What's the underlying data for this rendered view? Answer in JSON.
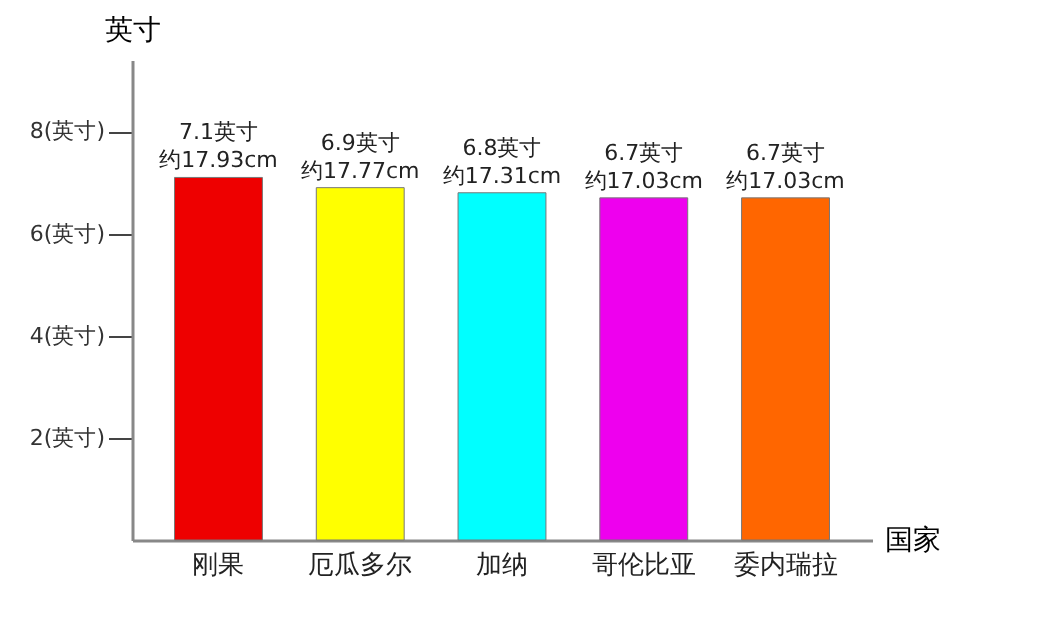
{
  "chart_data": {
    "type": "bar",
    "xlabel": "国家",
    "ylabel": "英寸",
    "categories": [
      "刚果",
      "厄瓜多尔",
      "加纳",
      "哥伦比亚",
      "委内瑞拉"
    ],
    "values": [
      7.1,
      6.9,
      6.8,
      6.7,
      6.7
    ],
    "colors": [
      "#ee0000",
      "#ffff00",
      "#00ffff",
      "#ee00ee",
      "#ff6600"
    ],
    "value_labels": [
      "7.1英寸",
      "6.9英寸",
      "6.8英寸",
      "6.7英寸",
      "6.7英寸"
    ],
    "annotations": [
      {
        "text": "约17.93cm",
        "x": "刚果",
        "y": 7.1
      },
      {
        "text": "约17.77cm",
        "x": "厄瓜多尔",
        "y": 6.9
      },
      {
        "text": "约17.31cm",
        "x": "加纳",
        "y": 6.8
      },
      {
        "text": "约17.03cm",
        "x": "哥伦比亚",
        "y": 6.7
      },
      {
        "text": "约17.03cm",
        "x": "委内瑞拉",
        "y": 6.7
      }
    ],
    "ylim": [
      0,
      9.4
    ],
    "yticks": [
      {
        "value": 2,
        "label": "2(英寸)"
      },
      {
        "value": 4,
        "label": "4(英寸)"
      },
      {
        "value": 6,
        "label": "6(英寸)"
      },
      {
        "value": 8,
        "label": "8(英寸)"
      }
    ],
    "grid": false
  }
}
